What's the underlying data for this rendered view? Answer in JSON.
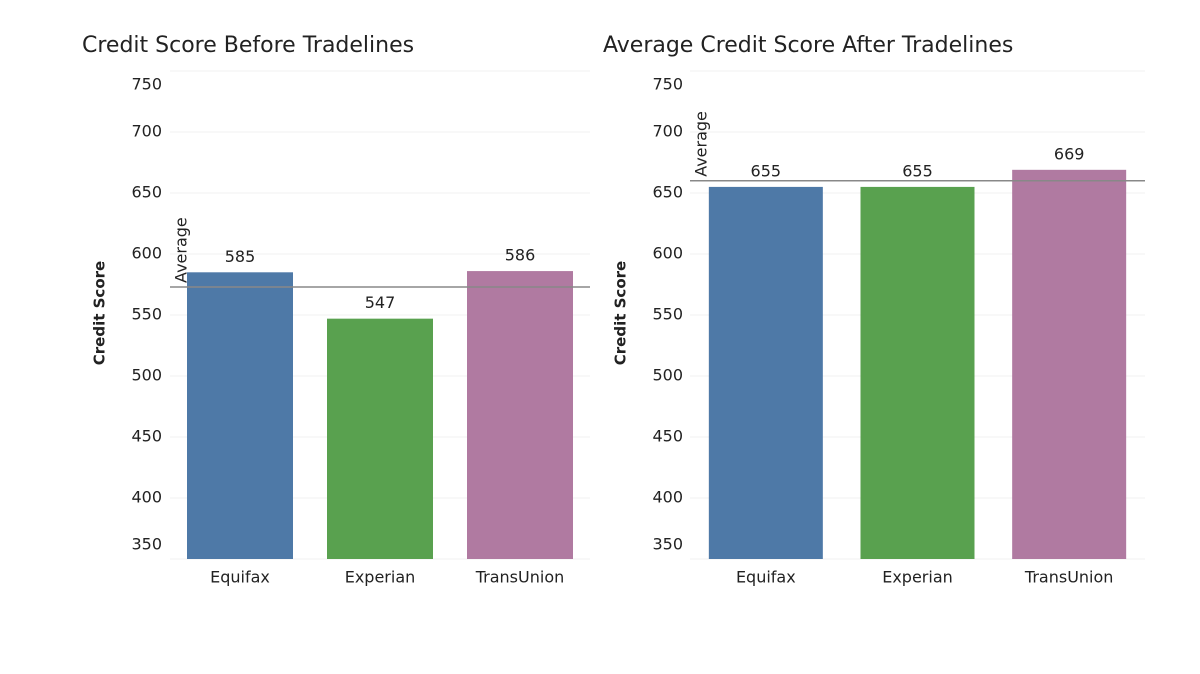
{
  "chart_data": [
    {
      "type": "bar",
      "title": "Credit Score Before Tradelines",
      "y_label": "Credit Score",
      "categories": [
        "Equifax",
        "Experian",
        "TransUnion"
      ],
      "values": [
        585,
        547,
        586
      ],
      "colors": [
        "#4e79a7",
        "#59a14f",
        "#b07aa1"
      ],
      "ylim": [
        350,
        750
      ],
      "yticks": [
        350,
        400,
        450,
        500,
        550,
        600,
        650,
        700,
        750
      ],
      "grid": true,
      "average": {
        "label": "Average",
        "value": 573
      }
    },
    {
      "type": "bar",
      "title": "Average Credit Score After Tradelines",
      "y_label": "Credit Score",
      "categories": [
        "Equifax",
        "Experian",
        "TransUnion"
      ],
      "values": [
        655,
        655,
        669
      ],
      "colors": [
        "#4e79a7",
        "#59a14f",
        "#b07aa1"
      ],
      "ylim": [
        350,
        750
      ],
      "yticks": [
        350,
        400,
        450,
        500,
        550,
        600,
        650,
        700,
        750
      ],
      "grid": true,
      "average": {
        "label": "Average",
        "value": 660
      }
    }
  ]
}
